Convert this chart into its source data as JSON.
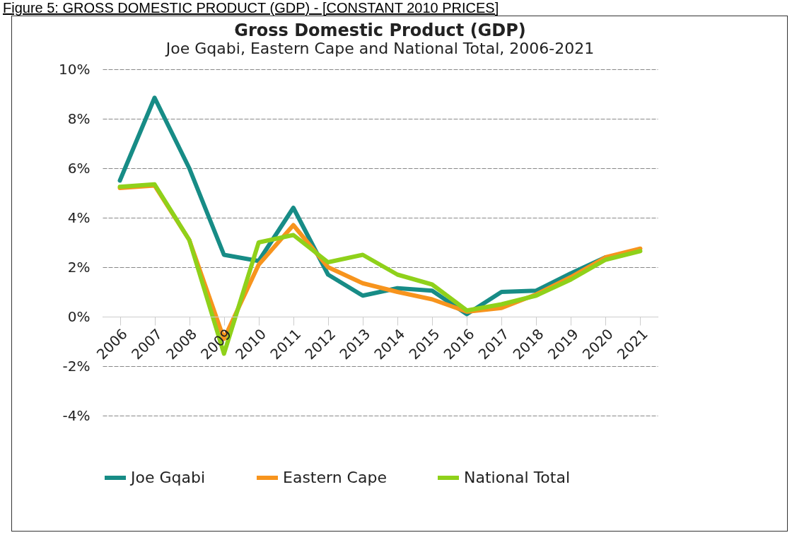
{
  "chart_data": {
    "type": "line",
    "title": "Gross Domestic Product (GDP)",
    "subtitle": "Joe Gqabi, Eastern Cape and National Total, 2006-2021",
    "annotations": [
      "Figure 5: GROSS DOMESTIC PRODUCT (GDP) - [CONSTANT 2010 PRICES]"
    ],
    "categories": [
      "2006",
      "2007",
      "2008",
      "2009",
      "2010",
      "2011",
      "2012",
      "2013",
      "2014",
      "2015",
      "2016",
      "2017",
      "2018",
      "2019",
      "2020",
      "2021"
    ],
    "series": [
      {
        "name": "Joe Gqabi",
        "color": "#178c86",
        "values": [
          5.5,
          8.85,
          6.0,
          2.5,
          2.25,
          4.4,
          1.7,
          0.85,
          1.15,
          1.05,
          0.1,
          1.0,
          1.05,
          1.75,
          2.4,
          null
        ]
      },
      {
        "name": "Eastern Cape",
        "color": "#f7941d",
        "values": [
          5.2,
          5.3,
          3.1,
          -0.9,
          2.1,
          3.7,
          2.0,
          1.35,
          1.0,
          0.7,
          0.2,
          0.35,
          0.9,
          1.6,
          2.4,
          2.75
        ]
      },
      {
        "name": "National Total",
        "color": "#8fd11a",
        "values": [
          5.25,
          5.35,
          3.1,
          -1.5,
          3.0,
          3.3,
          2.2,
          2.5,
          1.7,
          1.3,
          0.25,
          0.5,
          0.85,
          1.5,
          2.3,
          2.65
        ]
      }
    ],
    "ylim": [
      -4,
      10
    ],
    "yticks": [
      {
        "value": -4,
        "label": "-4%"
      },
      {
        "value": -2,
        "label": "-2%"
      },
      {
        "value": 0,
        "label": "0%"
      },
      {
        "value": 2,
        "label": "2%"
      },
      {
        "value": 4,
        "label": "4%"
      },
      {
        "value": 6,
        "label": "6%"
      },
      {
        "value": 8,
        "label": "8%"
      },
      {
        "value": 10,
        "label": "10%"
      }
    ],
    "grid": "y",
    "legend": "bottom",
    "line_style": "solid"
  }
}
